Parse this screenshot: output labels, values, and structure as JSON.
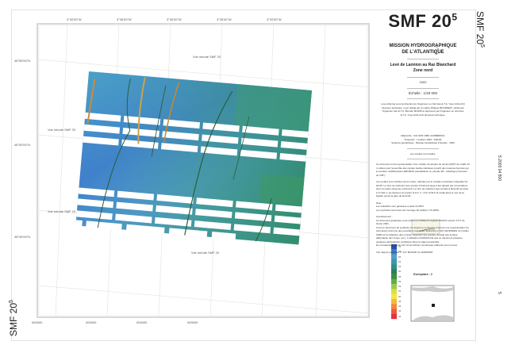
{
  "sheet": {
    "code": "SMF 20",
    "code_sup": "5",
    "side_label": "5 2003 04 500",
    "side_label_small": "5"
  },
  "panel": {
    "mission": "MISSION HYDROGRAPHIQUE",
    "mission2": "DE L'ATLANTIQUE",
    "survey": "Levé de Lannion au Raz Blanchard",
    "zone": "Zone nord",
    "year": "2000",
    "scale": "Échelle : 1/20 000",
    "credits": "Levé effectué sous la direction de l'ingénieur en chef des E.T.A. Yves GUILLOU directeur technique. Levé rédigé par le maître Philippe BOURDEIX, vérifié par l'ingénieur des E.T.A. Benoîte MORIN et approuvé par l'ingénieur en chef des E.T.A. Yves GUILLOU directeur technique.",
    "geodesy1": "Ellipsoïde : IAG GRS 1980 (CANBERRA)",
    "geodesy2": "Projection : Lambert 1993 - RGF93",
    "geodesy3": "Système géodésique : Réseau Géodésique Français - 1993",
    "soundings": "Les sondes sont réelles.",
    "para1": "Ce document est la représentation d'un modèle numérique de terrain (MNT) de maille 10 m obtenu par l'ensemble des sondes réelles calculées à partir des mesures fournies par le sondeur multifaisceaux EM1002S (visualisation en pseudo 3D - éclairage provenant du 135°).",
    "para2": "Les sondes sont réduites de la marée, calculée par le modèle numérique intégrable 01-04-05. Le zéro de réduction des sondes à Paimpol ange à été adopté par concordance avec la marée observée à Roscoff. Le zéro de réduction des sondes à Roscoff est situé à 17,021 m au-dessous du repère N.G.F. 2 - N.R. R.913 11 scellé dans le mur de la façade est de la gare de Roscoff.",
    "note_title": "Note :",
    "note1": "Les isobathes sont générées à partir du MNT.",
    "note2": "Les symboles sont issus de l'ouvrage 1D (édition n°3-2002).",
    "warn_title": "Avertissement :",
    "warn1": "Ce document graphique a été obtenu en utilisant le logiciel ARGOS version 3.5.1 de février 2001.",
    "warn2": "C'est un document de synthèse sur lequel on a cherché à donner une représentation du fond aussi conforme que possible à l'esprit de l'instruction n°612 SHOM/EDN du 3 juillet 1998 sur la rédaction des minutes (sélection des sondes, densité des sondes, délimitation des zones, etc.). L'utilisation d'ARGOS fait que ce document présente quelques particularités explicitées dans le rapport particulier.",
    "warn3": "En conséquence, seule font foi les fichiers numériques élaborés pour ce levé.",
    "report": "Voir rapport particulier n° 127 MHA/NP du 12/08/2002",
    "signature_caption": "Exemplaire : 2"
  },
  "map": {
    "grid_labels_top": [
      "3°40'00\"W",
      "3°35'00\"W",
      "3°30'00\"W",
      "3°25'00\"W",
      "3°20'00\"W"
    ],
    "lambert_labels": [
      "000000",
      "000000",
      "000000",
      "000000"
    ],
    "lat_labels": [
      "48°55'00\"N",
      "48°50'00\"N",
      "48°45'00\"N"
    ],
    "sheet_refs": [
      "Voir minute SMF 20",
      "Voir minute SMF 20",
      "Voir minute SMF 20",
      "Voir minute SMF 20"
    ]
  },
  "legend": {
    "depth_labels": [
      "70",
      "68",
      "66",
      "64",
      "62",
      "60",
      "58",
      "56",
      "54",
      "52",
      "50",
      "48",
      "46",
      "44",
      "42"
    ],
    "colors": [
      "#2b4fa6",
      "#3f7fcc",
      "#4fa0d0",
      "#3e9aa5",
      "#2f8f8a",
      "#2f7d5a",
      "#3b8f3e",
      "#5fae48",
      "#9acb4c",
      "#d9e04a",
      "#f3e93c",
      "#f7b83a",
      "#f38a3a",
      "#ef5a3e",
      "#e8303a"
    ]
  },
  "colors": {
    "deep": "#3f78c8",
    "mid": "#4aa3c4",
    "shallow": "#3f9a78",
    "ridge": "#c7a04a"
  }
}
